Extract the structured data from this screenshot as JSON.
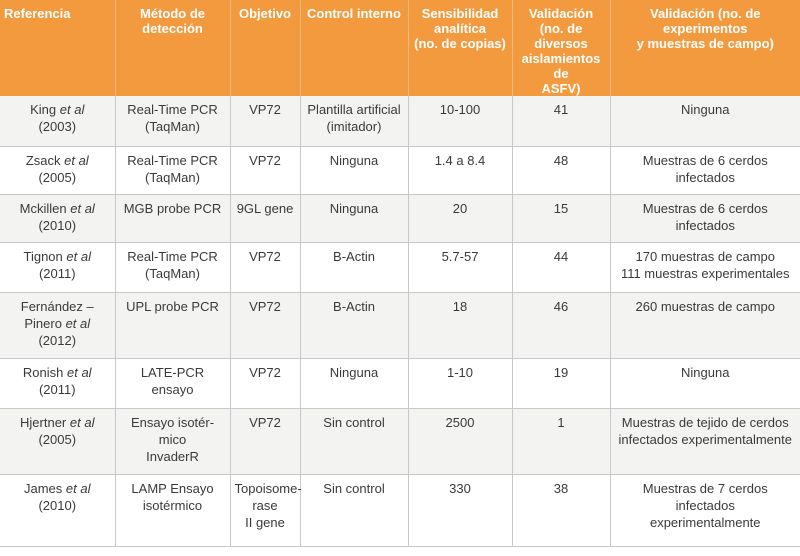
{
  "headers": {
    "referencia": "Referencia",
    "metodo": "Método de\ndetección",
    "objetivo": "Objetivo",
    "control": "Control interno",
    "sensibilidad": "Sensibilidad\nanalítica\n(no. de copias)",
    "validacion_aislamientos": "Validación\n(no. de diversos\naislamientos de\nASFV)",
    "validacion_experimentos": "Validación (no. de experimentos\ny muestras de campo)"
  },
  "rows": [
    {
      "ref_author": "King",
      "ref_etal": "et al",
      "ref_year": "(2003)",
      "metodo": "Real-Time PCR\n(TaqMan)",
      "objetivo": "VP72",
      "control": "Plantilla artificial\n(imitador)",
      "sensibilidad": "10-100",
      "aislamientos": "41",
      "experimentos": "Ninguna"
    },
    {
      "ref_author": "Zsack",
      "ref_etal": "et al",
      "ref_year": "(2005)",
      "metodo": "Real-Time PCR\n(TaqMan)",
      "objetivo": "VP72",
      "control": "Ninguna",
      "sensibilidad": "1.4 a 8.4",
      "aislamientos": "48",
      "experimentos": "Muestras de 6 cerdos infectados"
    },
    {
      "ref_author": "Mckillen",
      "ref_etal": "et al",
      "ref_year": "(2010)",
      "metodo": "MGB probe PCR",
      "objetivo": "9GL gene",
      "control": "Ninguna",
      "sensibilidad": "20",
      "aislamientos": "15",
      "experimentos": "Muestras de 6 cerdos infectados"
    },
    {
      "ref_author": "Tignon",
      "ref_etal": "et al",
      "ref_year": "(2011)",
      "metodo": "Real-Time PCR\n(TaqMan)",
      "objetivo": "VP72",
      "control": "B-Actin",
      "sensibilidad": "5.7-57",
      "aislamientos": "44",
      "experimentos": "170 muestras de campo\n111 muestras experimentales"
    },
    {
      "ref_author": "Fernández –\nPinero",
      "ref_etal": "et al",
      "ref_year": "(2012)",
      "metodo": "UPL probe PCR",
      "objetivo": "VP72",
      "control": "B-Actin",
      "sensibilidad": "18",
      "aislamientos": "46",
      "experimentos": "260 muestras de campo"
    },
    {
      "ref_author": "Ronish",
      "ref_etal": "et al",
      "ref_year": "(2011)",
      "metodo": "LATE-PCR ensayo",
      "objetivo": "VP72",
      "control": "Ninguna",
      "sensibilidad": "1-10",
      "aislamientos": "19",
      "experimentos": "Ninguna"
    },
    {
      "ref_author": "Hjertner",
      "ref_etal": "et al",
      "ref_year": "(2005)",
      "metodo": "Ensayo isotér-\nmico\nInvaderR",
      "objetivo": "VP72",
      "control": "Sin control",
      "sensibilidad": "2500",
      "aislamientos": "1",
      "experimentos": "Muestras de tejido de cerdos\ninfectados experimentalmente"
    },
    {
      "ref_author": "James",
      "ref_etal": "et al",
      "ref_year": "(2010)",
      "metodo": "LAMP Ensayo\nisotérmico",
      "objetivo": "Topoisome-\nrase\nII gene",
      "control": "Sin control",
      "sensibilidad": "330",
      "aislamientos": "38",
      "experimentos": "Muestras de 7 cerdos infectados\nexperimentalmente"
    }
  ]
}
